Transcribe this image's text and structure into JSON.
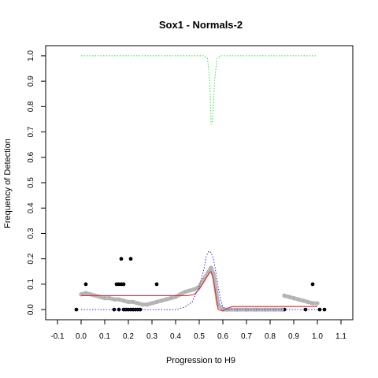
{
  "chart_data": {
    "type": "scatter",
    "title": "Sox1 - Normals-2",
    "xlabel": "Progression to H9",
    "ylabel": "Frequency of Detection",
    "xlim": [
      -0.15,
      1.15
    ],
    "ylim": [
      -0.04,
      1.04
    ],
    "x_ticks": [
      -0.1,
      0,
      0.1,
      0.2,
      0.3,
      0.4,
      0.5,
      0.6,
      0.7,
      0.8,
      0.9,
      1.0,
      1.1
    ],
    "x_tick_labels": [
      "-0.1",
      "0.0",
      "0.1",
      "0.2",
      "0.3",
      "0.4",
      "0.5",
      "0.6",
      "0.7",
      "0.8",
      "0.9",
      "1.0",
      "1.1"
    ],
    "y_ticks": [
      0,
      0.1,
      0.2,
      0.3,
      0.4,
      0.5,
      0.6,
      0.7,
      0.8,
      0.9,
      1.0
    ],
    "y_tick_labels": [
      "0.0",
      "0.1",
      "0.2",
      "0.3",
      "0.4",
      "0.5",
      "0.6",
      "0.7",
      "0.8",
      "0.9",
      "1.0"
    ],
    "grid": false,
    "colors": {
      "points": "#000000",
      "smooth_gray": "#b3b3b3",
      "red_line": "#e03030",
      "blue_dotted": "#3030e0",
      "green_dotted": "#30e030"
    },
    "series": [
      {
        "style": "points",
        "x": [
          -0.02,
          0.02,
          0.15,
          0.16,
          0.17,
          0.18,
          0.19,
          0.14,
          0.16,
          0.18,
          0.2,
          0.21,
          0.22,
          0.23,
          0.24,
          0.25,
          0.17,
          0.21,
          0.32,
          0.86,
          0.95,
          0.98,
          1.01,
          1.03
        ],
        "y": [
          0.0,
          0.1,
          0.1,
          0.1,
          0.1,
          0.1,
          0.0,
          0.0,
          0.0,
          0.0,
          0.0,
          0.0,
          0.0,
          0.0,
          0.0,
          0.0,
          0.2,
          0.2,
          0.1,
          0.0,
          0.0,
          0.1,
          0.0,
          0.0
        ]
      },
      {
        "style": "gray-thick",
        "x": [
          0.0,
          0.02,
          0.04,
          0.06,
          0.08,
          0.1,
          0.12,
          0.14,
          0.16,
          0.18,
          0.2,
          0.22,
          0.24,
          0.26,
          0.28,
          0.3,
          0.32,
          0.34,
          0.36,
          0.38,
          0.4,
          0.42,
          0.44,
          0.46,
          0.48,
          0.5,
          0.52,
          0.54,
          0.55,
          0.56,
          0.57,
          0.58,
          0.6,
          0.62,
          0.66,
          0.7,
          0.74,
          0.78,
          0.82,
          0.85
        ],
        "y": [
          0.06,
          0.065,
          0.06,
          0.055,
          0.05,
          0.045,
          0.045,
          0.04,
          0.04,
          0.035,
          0.03,
          0.03,
          0.025,
          0.02,
          0.02,
          0.025,
          0.03,
          0.035,
          0.04,
          0.045,
          0.05,
          0.06,
          0.07,
          0.075,
          0.08,
          0.09,
          0.12,
          0.15,
          0.165,
          0.14,
          0.08,
          0.02,
          0.0,
          0.0,
          0.0,
          0.0,
          0.0,
          0.0,
          0.0,
          0.0
        ]
      },
      {
        "style": "gray-thick",
        "x": [
          0.86,
          0.88,
          0.9,
          0.92,
          0.94,
          0.96,
          0.98,
          1.0
        ],
        "y": [
          0.055,
          0.05,
          0.045,
          0.04,
          0.035,
          0.03,
          0.025,
          0.025
        ]
      },
      {
        "style": "red-line",
        "x": [
          0.0,
          0.45,
          0.48,
          0.5,
          0.52,
          0.54,
          0.55,
          0.56,
          0.57,
          0.58,
          0.6,
          0.62,
          0.64,
          1.0
        ],
        "y": [
          0.055,
          0.055,
          0.06,
          0.08,
          0.11,
          0.14,
          0.15,
          0.12,
          0.06,
          0.0,
          -0.005,
          0.005,
          0.012,
          0.012
        ]
      },
      {
        "style": "blue-dotted",
        "x": [
          0.0,
          0.4,
          0.44,
          0.47,
          0.5,
          0.52,
          0.53,
          0.54,
          0.55,
          0.56,
          0.57,
          0.58,
          0.59,
          0.6,
          0.62,
          0.65,
          1.0
        ],
        "y": [
          0.0,
          0.0,
          0.01,
          0.03,
          0.09,
          0.16,
          0.21,
          0.23,
          0.225,
          0.2,
          0.15,
          0.09,
          0.04,
          0.01,
          0.0,
          0.0,
          0.0
        ]
      },
      {
        "style": "green-dotted",
        "x": [
          0.0,
          0.52,
          0.535,
          0.545,
          0.55,
          0.555,
          0.565,
          0.575,
          0.59,
          1.0
        ],
        "y": [
          1.0,
          1.0,
          0.99,
          0.9,
          0.73,
          0.74,
          0.9,
          0.99,
          1.0,
          1.0
        ]
      }
    ]
  }
}
